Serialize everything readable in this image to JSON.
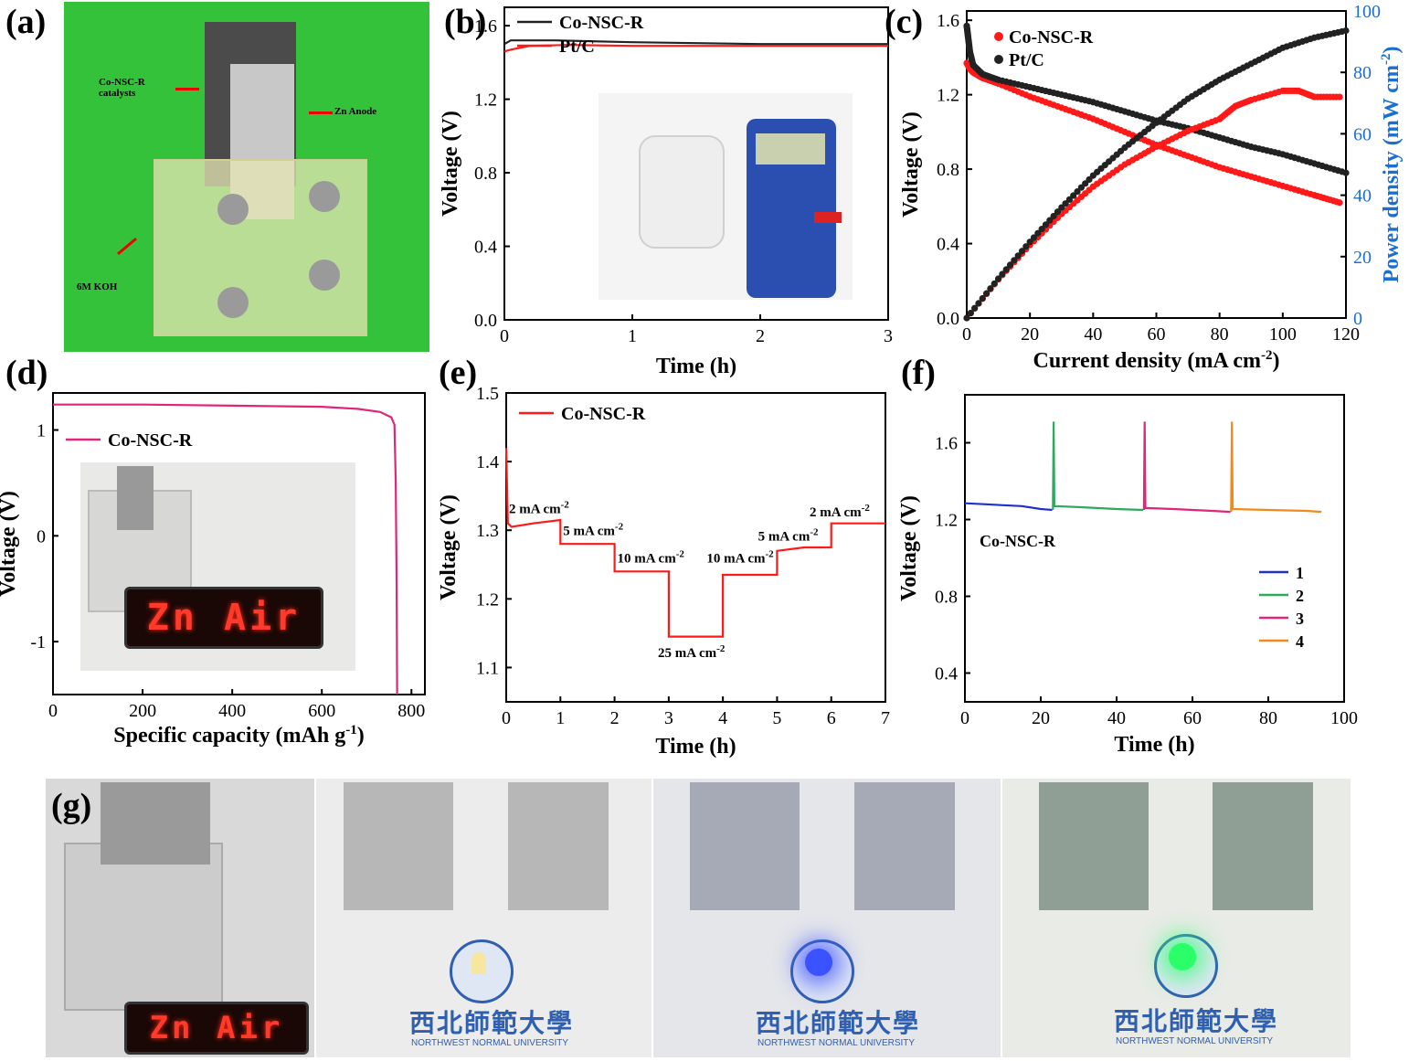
{
  "panel_labels": {
    "a": "(a)",
    "b": "(b)",
    "c": "(c)",
    "d": "(d)",
    "e": "(e)",
    "f": "(f)",
    "g": "(g)"
  },
  "photo_a": {
    "catalyst_label": "Co-NSC-R catalysts",
    "anode_label": "Zn Anode",
    "koh_label": "6M KOH"
  },
  "led_text": "Zn Air",
  "university": {
    "cn": "西北師範大學",
    "en": "NORTHWEST NORMAL UNIVERSITY"
  },
  "colors": {
    "co_nsc_r": "#ff1a1a",
    "pt_c": "#222222",
    "power_axis": "#1a6fd1",
    "d_line": "#e0257a",
    "f1": "#1f2fd1",
    "f2": "#2faa5c",
    "f3": "#e0257a",
    "f4": "#f08a1c",
    "green_bg": "#34c23a"
  },
  "chart_data": [
    {
      "id": "b",
      "type": "line",
      "xlabel": "Time (h)",
      "ylabel": "Voltage (V)",
      "xlim": [
        0,
        3
      ],
      "ylim": [
        0,
        1.7
      ],
      "xticks": [
        "0",
        "1",
        "2",
        "3"
      ],
      "yticks": [
        "0.0",
        "0.4",
        "0.8",
        "1.2",
        "1.6"
      ],
      "legend": "top-left",
      "series": [
        {
          "name": "Co-NSC-R",
          "color": "#222222",
          "x": [
            0,
            0.05,
            0.4,
            1.0,
            1.5,
            2.0,
            3.0
          ],
          "y": [
            1.5,
            1.52,
            1.52,
            1.51,
            1.505,
            1.5,
            1.5
          ]
        },
        {
          "name": "Pt/C",
          "color": "#ff1a1a",
          "x": [
            0,
            0.05,
            0.2,
            0.5,
            1.0,
            2.0,
            3.0
          ],
          "y": [
            1.46,
            1.47,
            1.49,
            1.495,
            1.49,
            1.49,
            1.49
          ]
        }
      ]
    },
    {
      "id": "c",
      "type": "scatter",
      "xlabel": "Current density (mA cm",
      "xlabel_sup": "-2",
      "xlabel_end": ")",
      "ylabel": "Voltage (V)",
      "y2label": "Power density (mW cm",
      "y2label_sup": "-2",
      "y2label_end": ")",
      "xlim": [
        0,
        120
      ],
      "ylim": [
        0,
        1.65
      ],
      "y2lim": [
        0,
        100
      ],
      "xticks": [
        "0",
        "20",
        "40",
        "60",
        "80",
        "100",
        "120"
      ],
      "yticks": [
        "0.0",
        "0.4",
        "0.8",
        "1.2",
        "1.6"
      ],
      "y2ticks": [
        "0",
        "20",
        "40",
        "60",
        "80",
        "100"
      ],
      "legend": "top-left",
      "series": [
        {
          "name": "Co-NSC-R",
          "kind": "voltage",
          "color": "#ff1a1a",
          "x": [
            0,
            1,
            2,
            5,
            10,
            20,
            30,
            40,
            50,
            60,
            70,
            80,
            90,
            100,
            110,
            118
          ],
          "y": [
            1.37,
            1.34,
            1.32,
            1.29,
            1.26,
            1.19,
            1.13,
            1.07,
            1.0,
            0.93,
            0.87,
            0.81,
            0.76,
            0.71,
            0.66,
            0.62
          ]
        },
        {
          "name": "Pt/C",
          "kind": "voltage",
          "color": "#222222",
          "x": [
            0,
            0.5,
            1,
            2,
            5,
            10,
            20,
            30,
            40,
            50,
            60,
            70,
            80,
            90,
            100,
            110,
            120
          ],
          "y": [
            1.57,
            1.5,
            1.43,
            1.36,
            1.31,
            1.28,
            1.24,
            1.2,
            1.16,
            1.11,
            1.06,
            1.02,
            0.97,
            0.92,
            0.88,
            0.83,
            0.78
          ]
        },
        {
          "name": "Co-NSC-R",
          "kind": "power",
          "color": "#ff1a1a",
          "x": [
            0,
            10,
            20,
            30,
            40,
            50,
            60,
            70,
            80,
            85,
            90,
            100,
            105,
            110,
            118
          ],
          "y": [
            0,
            12.6,
            23.8,
            33.9,
            42.8,
            50,
            55.8,
            60.9,
            64.8,
            69,
            71,
            74,
            74,
            72,
            72
          ]
        },
        {
          "name": "Pt/C",
          "kind": "power",
          "color": "#222222",
          "x": [
            0,
            10,
            20,
            30,
            40,
            50,
            60,
            70,
            80,
            90,
            100,
            110,
            120
          ],
          "y": [
            0,
            12.8,
            24.8,
            36,
            46.4,
            55.5,
            63.6,
            71.4,
            77.6,
            82.8,
            88,
            91.3,
            93.6
          ]
        }
      ]
    },
    {
      "id": "d",
      "type": "line",
      "xlabel": "Specific capacity (mAh g",
      "xlabel_sup": "-1",
      "xlabel_end": ")",
      "ylabel": "Voltage (V)",
      "xlim": [
        0,
        830
      ],
      "ylim": [
        -1.5,
        1.35
      ],
      "xticks": [
        "0",
        "200",
        "400",
        "600",
        "800"
      ],
      "yticks": [
        "-1",
        "0",
        "1"
      ],
      "legend": "top-left",
      "series": [
        {
          "name": "Co-NSC-R",
          "color": "#e0257a",
          "x": [
            0,
            200,
            400,
            600,
            680,
            730,
            755,
            762,
            765,
            767,
            768
          ],
          "y": [
            1.24,
            1.24,
            1.23,
            1.22,
            1.2,
            1.17,
            1.12,
            1.05,
            0.5,
            -0.5,
            -1.5
          ]
        }
      ]
    },
    {
      "id": "e",
      "type": "line",
      "xlabel": "Time (h)",
      "ylabel": "Voltage (V)",
      "xlim": [
        0,
        7
      ],
      "ylim": [
        1.05,
        1.5
      ],
      "xticks": [
        "0",
        "1",
        "2",
        "3",
        "4",
        "5",
        "6",
        "7"
      ],
      "yticks": [
        "1.1",
        "1.2",
        "1.3",
        "1.4",
        "1.5"
      ],
      "legend": "top-left",
      "series": [
        {
          "name": "Co-NSC-R",
          "color": "#ff1a1a",
          "x": [
            0,
            0.03,
            0.1,
            0.5,
            1,
            1,
            1.5,
            2,
            2,
            2.5,
            3,
            3,
            3.5,
            4,
            4,
            4.5,
            5,
            5,
            5.5,
            6,
            6,
            6.5,
            7
          ],
          "y": [
            1.42,
            1.31,
            1.305,
            1.31,
            1.315,
            1.28,
            1.28,
            1.28,
            1.24,
            1.24,
            1.24,
            1.145,
            1.145,
            1.145,
            1.235,
            1.235,
            1.235,
            1.27,
            1.275,
            1.275,
            1.31,
            1.31,
            1.31
          ]
        }
      ],
      "annotations": [
        {
          "text": "2 mA cm",
          "sup": "-2",
          "x": 0.05,
          "y": 1.325
        },
        {
          "text": "5 mA cm",
          "sup": "-2",
          "x": 1.05,
          "y": 1.293
        },
        {
          "text": "10 mA cm",
          "sup": "-2",
          "x": 2.05,
          "y": 1.253
        },
        {
          "text": "25 mA cm",
          "sup": "-2",
          "x": 2.8,
          "y": 1.115
        },
        {
          "text": "10 mA cm",
          "sup": "-2",
          "x": 3.7,
          "y": 1.253
        },
        {
          "text": "5 mA cm",
          "sup": "-2",
          "x": 4.65,
          "y": 1.285
        },
        {
          "text": "2 mA cm",
          "sup": "-2",
          "x": 5.6,
          "y": 1.32
        }
      ]
    },
    {
      "id": "f",
      "type": "line",
      "xlabel": "Time (h)",
      "ylabel": "Voltage (V)",
      "xlim": [
        0,
        100
      ],
      "ylim": [
        0.25,
        1.85
      ],
      "xticks": [
        "0",
        "20",
        "40",
        "60",
        "80",
        "100"
      ],
      "yticks": [
        "0.4",
        "0.8",
        "1.2",
        "1.6"
      ],
      "legend": "bottom-right",
      "annotation": "Co-NSC-R",
      "series": [
        {
          "name": "1",
          "color": "#1f2fd1",
          "x": [
            0,
            5,
            10,
            15,
            20,
            23
          ],
          "y": [
            1.285,
            1.28,
            1.275,
            1.27,
            1.255,
            1.25
          ]
        },
        {
          "name": "2",
          "color": "#2faa5c",
          "x": [
            23.2,
            23.4,
            23.6,
            30,
            40,
            47
          ],
          "y": [
            1.25,
            1.71,
            1.27,
            1.265,
            1.255,
            1.25
          ]
        },
        {
          "name": "3",
          "color": "#e0257a",
          "x": [
            47.2,
            47.4,
            47.6,
            55,
            65,
            70
          ],
          "y": [
            1.25,
            1.71,
            1.26,
            1.255,
            1.245,
            1.24
          ]
        },
        {
          "name": "4",
          "color": "#f08a1c",
          "x": [
            70.2,
            70.4,
            70.6,
            80,
            90,
            94
          ],
          "y": [
            1.24,
            1.71,
            1.255,
            1.25,
            1.245,
            1.24
          ]
        }
      ]
    }
  ]
}
